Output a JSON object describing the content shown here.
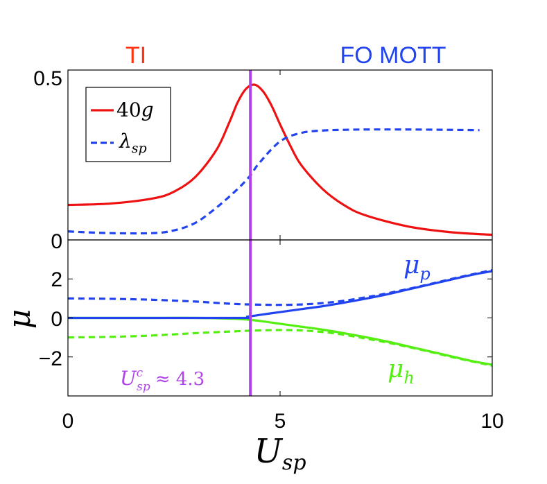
{
  "chart_data": {
    "type": "line",
    "phase_labels": {
      "left": "TI",
      "right": "FO MOTT",
      "left_color": "#ff3311",
      "right_color": "#2244ee"
    },
    "critical_point": {
      "x": 4.3,
      "color": "#b044e8",
      "label_base": "U",
      "label_sub": "sp",
      "label_sup": "c",
      "label_rest": "≈ 4.3"
    },
    "x_axis": {
      "label_base": "U",
      "label_sub": "sp",
      "range": [
        0,
        10
      ],
      "ticks": [
        0,
        5,
        10
      ],
      "tick_labels": [
        "0",
        "5",
        "10"
      ]
    },
    "top_panel": {
      "ylim": [
        0,
        0.5
      ],
      "ytick_labels": [
        {
          "value": 0.5,
          "text": "0.5"
        },
        {
          "value": 0,
          "text": "0"
        }
      ],
      "legend": [
        {
          "base": "40",
          "italic": "g",
          "sub": "",
          "color": "#ee1111",
          "dash": false
        },
        {
          "base": "",
          "italic": "λ",
          "sub": "sp",
          "color": "#2244ee",
          "dash": true
        }
      ],
      "series": [
        {
          "name": "40g",
          "color": "#ee1111",
          "dash": false,
          "x": [
            0,
            1,
            2,
            2.5,
            3,
            3.5,
            3.8,
            4.0,
            4.2,
            4.4,
            4.6,
            4.8,
            5.0,
            5.25,
            5.5,
            6.0,
            6.5,
            7.0,
            8.0,
            9.0,
            10.0
          ],
          "y": [
            0.103,
            0.107,
            0.122,
            0.142,
            0.185,
            0.265,
            0.345,
            0.405,
            0.445,
            0.457,
            0.437,
            0.395,
            0.34,
            0.275,
            0.22,
            0.15,
            0.103,
            0.073,
            0.04,
            0.023,
            0.015
          ]
        },
        {
          "name": "λsp",
          "color": "#2244ee",
          "dash": true,
          "x": [
            0,
            1,
            2,
            2.5,
            3,
            3.5,
            4.0,
            4.3,
            4.5,
            5.0,
            5.5,
            6.0,
            6.5,
            7.0,
            8.0,
            9.0,
            9.7
          ],
          "y": [
            0.025,
            0.02,
            0.02,
            0.028,
            0.05,
            0.095,
            0.15,
            0.19,
            0.225,
            0.29,
            0.315,
            0.322,
            0.324,
            0.325,
            0.325,
            0.324,
            0.323
          ]
        }
      ]
    },
    "bottom_panel": {
      "ylabel": "μ",
      "ylim": [
        -4,
        4
      ],
      "yticks": [
        2,
        0,
        -2
      ],
      "ytick_labels": [
        "2",
        "0",
        "−2"
      ],
      "series_labels": [
        {
          "base": "μ",
          "sub": "p",
          "color": "#2244ee"
        },
        {
          "base": "μ",
          "sub": "h",
          "color": "#55ee11"
        }
      ],
      "series": [
        {
          "name": "μp",
          "color": "#2244ee",
          "dash": false,
          "x": [
            4.2,
            4.5,
            5.0,
            5.5,
            6.0,
            6.5,
            7.0,
            7.5,
            8.0,
            8.5,
            9.0,
            9.5,
            10.0
          ],
          "y": [
            0.05,
            0.15,
            0.3,
            0.45,
            0.6,
            0.78,
            0.98,
            1.2,
            1.45,
            1.7,
            1.95,
            2.2,
            2.4
          ]
        },
        {
          "name": "μp (dashed)",
          "color": "#2244ee",
          "dash": true,
          "x": [
            0,
            1,
            2,
            3,
            3.5,
            4,
            4.5,
            5,
            5.5,
            6,
            6.5,
            7,
            7.5,
            8,
            8.5,
            9,
            9.5,
            10
          ],
          "y": [
            1.0,
            0.98,
            0.93,
            0.84,
            0.77,
            0.71,
            0.68,
            0.67,
            0.69,
            0.76,
            0.88,
            1.05,
            1.25,
            1.48,
            1.72,
            1.98,
            2.22,
            2.45
          ]
        },
        {
          "name": "μh",
          "color": "#55ee11",
          "dash": false,
          "x": [
            0,
            1,
            2,
            3,
            4,
            4.5,
            5,
            5.5,
            6,
            6.5,
            7,
            7.5,
            8,
            8.5,
            9,
            9.5,
            10
          ],
          "y": [
            0.0,
            0.0,
            0.0,
            0.0,
            -0.05,
            -0.15,
            -0.3,
            -0.45,
            -0.6,
            -0.78,
            -0.98,
            -1.2,
            -1.45,
            -1.7,
            -1.95,
            -2.2,
            -2.4
          ]
        },
        {
          "name": "μh (dashed)",
          "color": "#55ee11",
          "dash": true,
          "x": [
            0,
            1,
            2,
            3,
            4,
            4.5,
            5,
            5.5,
            6,
            6.5,
            7,
            7.5,
            8,
            8.5,
            9,
            9.5,
            10
          ],
          "y": [
            -1.0,
            -0.97,
            -0.9,
            -0.78,
            -0.68,
            -0.64,
            -0.62,
            -0.64,
            -0.72,
            -0.86,
            -1.05,
            -1.25,
            -1.48,
            -1.72,
            -1.98,
            -2.22,
            -2.45
          ]
        },
        {
          "name": "μp=μh (x<4.3)",
          "color": "#2244ee",
          "dash": false,
          "x": [
            0,
            2,
            4.3
          ],
          "y": [
            0,
            0,
            0
          ]
        }
      ]
    }
  }
}
